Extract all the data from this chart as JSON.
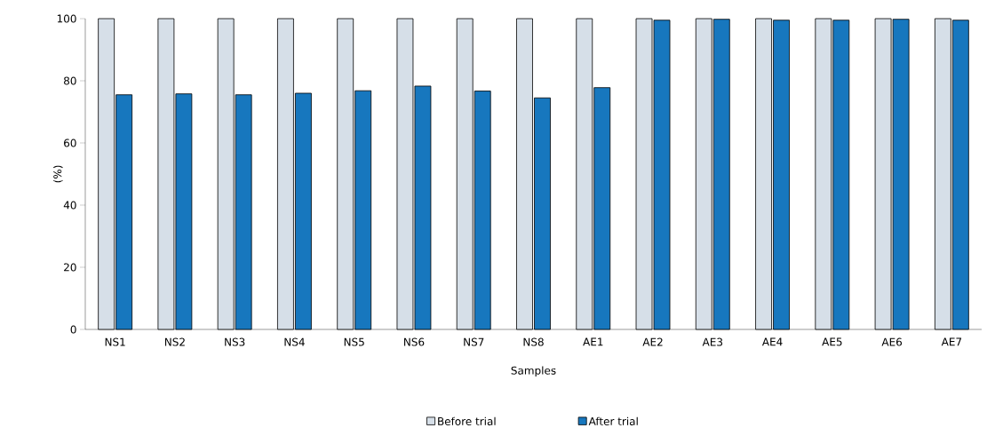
{
  "chart_data": {
    "type": "bar",
    "xlabel": "Samples",
    "ylabel": "(%)",
    "categories": [
      "NS1",
      "NS2",
      "NS3",
      "NS4",
      "NS5",
      "NS6",
      "NS7",
      "NS8",
      "AE1",
      "AE2",
      "AE3",
      "AE4",
      "AE5",
      "AE6",
      "AE7"
    ],
    "series": [
      {
        "name": "Before trial",
        "color": "#d6dfe8",
        "values": [
          100,
          100,
          100,
          100,
          100,
          100,
          100,
          100,
          100,
          100,
          100,
          100,
          100,
          100,
          100
        ]
      },
      {
        "name": "After trial",
        "color": "#1777be",
        "values": [
          75.5,
          75.8,
          75.5,
          76,
          76.8,
          78.3,
          76.7,
          74.5,
          77.8,
          99.5,
          99.8,
          99.5,
          99.5,
          99.8,
          99.5
        ]
      }
    ],
    "ylim": [
      0,
      100
    ],
    "yticks": [
      0,
      20,
      40,
      60,
      80,
      100
    ],
    "legend": "bottom"
  }
}
